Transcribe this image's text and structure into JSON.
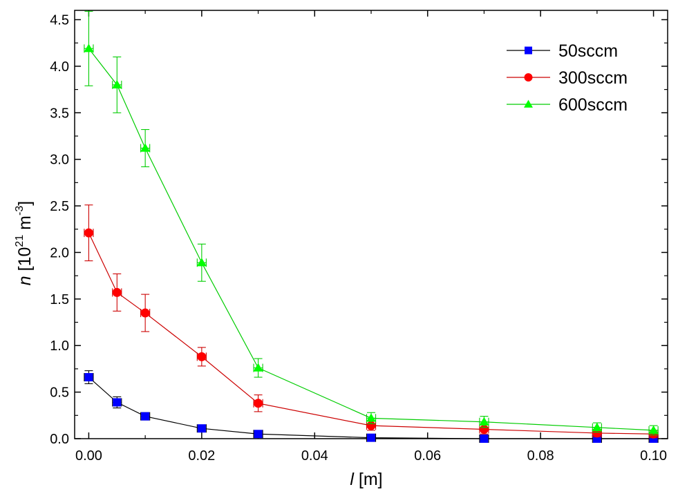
{
  "chart_data": {
    "type": "line",
    "title": "",
    "xlabel": {
      "italic": "l",
      "rest": " [m]"
    },
    "ylabel": {
      "italic": "n",
      "base": " [10",
      "exp1": "21",
      "unit": " m",
      "exp2": "-3",
      "close": "]"
    },
    "xlim": [
      -0.0025,
      0.1025
    ],
    "ylim": [
      0,
      4.6
    ],
    "xticks": [
      0.0,
      0.02,
      0.04,
      0.06,
      0.08,
      0.1
    ],
    "xtick_labels": [
      "0.00",
      "0.02",
      "0.04",
      "0.06",
      "0.08",
      "0.10"
    ],
    "yticks": [
      0.0,
      0.5,
      1.0,
      1.5,
      2.0,
      2.5,
      3.0,
      3.5,
      4.0,
      4.5
    ],
    "ytick_labels": [
      "0.0",
      "0.5",
      "1.0",
      "1.5",
      "2.0",
      "2.5",
      "3.0",
      "3.5",
      "4.0",
      "4.5"
    ],
    "grid": false,
    "legend_position": "top-right",
    "series": [
      {
        "name": "50sccm",
        "color": "#0000ff",
        "line_color": "#000000",
        "marker": "square",
        "x": [
          0.0,
          0.005,
          0.01,
          0.02,
          0.03,
          0.05,
          0.07,
          0.09,
          0.1
        ],
        "y": [
          0.66,
          0.39,
          0.24,
          0.11,
          0.05,
          0.01,
          0.0,
          0.0,
          0.0
        ],
        "yerr": [
          0.07,
          0.06,
          0.04,
          0.03,
          0.02,
          0.02,
          0.02,
          0.02,
          0.02
        ],
        "xerr": [
          0.0008,
          0.0008,
          0.0008,
          0.0008,
          0.0008,
          0.0008,
          0.0008,
          0.0008,
          0.0008
        ]
      },
      {
        "name": "300sccm",
        "color": "#ff0000",
        "line_color": "#cc0000",
        "marker": "circle",
        "x": [
          0.0,
          0.005,
          0.01,
          0.02,
          0.03,
          0.05,
          0.07,
          0.09,
          0.1
        ],
        "y": [
          2.21,
          1.57,
          1.35,
          0.88,
          0.38,
          0.14,
          0.1,
          0.06,
          0.05
        ],
        "yerr": [
          0.3,
          0.2,
          0.2,
          0.1,
          0.09,
          0.05,
          0.05,
          0.04,
          0.04
        ],
        "xerr": [
          0.0008,
          0.0008,
          0.0008,
          0.0008,
          0.0008,
          0.0008,
          0.0008,
          0.0008,
          0.0008
        ]
      },
      {
        "name": "600sccm",
        "color": "#00ff00",
        "line_color": "#00cc00",
        "marker": "triangle",
        "x": [
          0.0,
          0.005,
          0.01,
          0.02,
          0.03,
          0.05,
          0.07,
          0.09,
          0.1
        ],
        "y": [
          4.19,
          3.8,
          3.12,
          1.89,
          0.76,
          0.22,
          0.18,
          0.12,
          0.09
        ],
        "yerr": [
          0.4,
          0.3,
          0.2,
          0.2,
          0.1,
          0.06,
          0.06,
          0.05,
          0.05
        ],
        "xerr": [
          0.0008,
          0.0008,
          0.0008,
          0.0008,
          0.0008,
          0.0008,
          0.0008,
          0.0008,
          0.0008
        ]
      }
    ]
  }
}
